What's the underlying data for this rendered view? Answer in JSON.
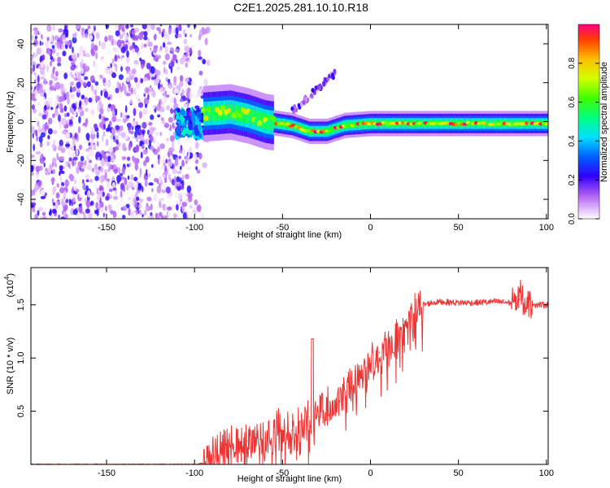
{
  "title": "C2E1.2025.281.10.10.R18",
  "chart_data": [
    {
      "type": "heatmap",
      "title": "C2E1.2025.281.10.10.R18",
      "xlabel": "Height of straight line (km)",
      "ylabel": "Frequency (Hz)",
      "xlim": [
        -193,
        101
      ],
      "ylim": [
        -50,
        50
      ],
      "xticks": [
        -150,
        -100,
        -50,
        0,
        50,
        100
      ],
      "yticks": [
        -40,
        -20,
        0,
        20,
        40
      ],
      "colorbar": {
        "label": "Normalized spectral amplitude",
        "range": [
          0,
          1
        ],
        "ticks": [
          0.0,
          0.2,
          0.4,
          0.6,
          0.8
        ]
      },
      "regions": [
        {
          "name": "noise",
          "x_range": [
            -193,
            -102
          ],
          "y_range": [
            -50,
            50
          ],
          "level": 0.15
        },
        {
          "name": "onset",
          "x_range": [
            -110,
            -95
          ],
          "y_range": [
            -8,
            6
          ],
          "level": 0.35
        },
        {
          "name": "signal-ridge",
          "x_range": [
            -95,
            101
          ],
          "center_hz": [
            [
              -95,
              4
            ],
            [
              -80,
              5
            ],
            [
              -70,
              3
            ],
            [
              -60,
              0
            ],
            [
              -45,
              -2
            ],
            [
              -35,
              -5
            ],
            [
              -25,
              -5
            ],
            [
              -15,
              -2
            ],
            [
              0,
              -1
            ],
            [
              20,
              -1
            ],
            [
              50,
              -1
            ],
            [
              100,
              -1
            ]
          ],
          "level": 0.9
        },
        {
          "name": "faint-branch",
          "x_range": [
            -45,
            -20
          ],
          "y_range": [
            5,
            25
          ],
          "level": 0.2
        }
      ]
    },
    {
      "type": "line",
      "title": "",
      "xlabel": "Height of straight line (km)",
      "ylabel": "SNR (10 * v/v)",
      "scale_note": "(x10^4)",
      "xlim": [
        -193,
        101
      ],
      "ylim": [
        0,
        1.85
      ],
      "xticks": [
        -150,
        -100,
        -50,
        0,
        50,
        100
      ],
      "yticks": [
        0.5,
        1.0,
        1.5
      ],
      "ytick_labels": [
        "0.5",
        "1.0",
        "1.5"
      ],
      "color": "#ee3333",
      "series": [
        {
          "name": "SNR",
          "x": [
            -193,
            -150,
            -110,
            -100,
            -95,
            -90,
            -85,
            -80,
            -75,
            -70,
            -65,
            -60,
            -55,
            -50,
            -45,
            -40,
            -35,
            -30,
            -25,
            -20,
            -15,
            -10,
            -5,
            0,
            5,
            10,
            15,
            20,
            25,
            30,
            35,
            40,
            50,
            60,
            70,
            80,
            85,
            90,
            95,
            101
          ],
          "values": [
            0.0,
            0.0,
            0.0,
            0.0,
            0.01,
            0.08,
            0.15,
            0.2,
            0.18,
            0.22,
            0.28,
            0.25,
            0.3,
            0.35,
            0.32,
            0.4,
            0.45,
            0.5,
            0.55,
            0.6,
            0.7,
            0.78,
            0.85,
            0.95,
            1.05,
            1.1,
            1.2,
            1.3,
            1.4,
            1.5,
            1.52,
            1.53,
            1.52,
            1.52,
            1.53,
            1.52,
            1.55,
            1.52,
            1.5,
            1.5
          ]
        }
      ],
      "annotations": [
        {
          "x": -33,
          "value": 1.18
        },
        {
          "x": 13,
          "value": 1.05
        },
        {
          "x": 85,
          "value": 1.72
        }
      ]
    }
  ]
}
